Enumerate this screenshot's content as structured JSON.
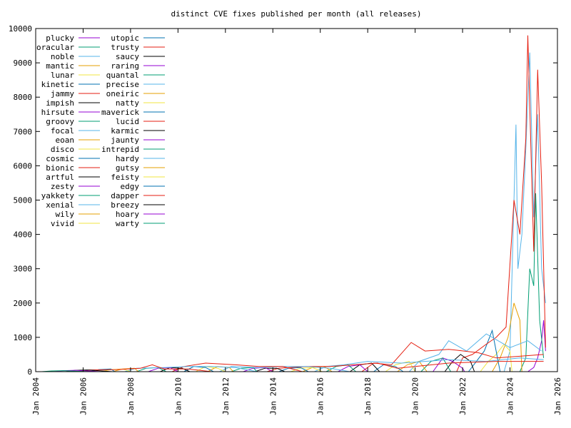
{
  "chart_data": {
    "type": "line",
    "title": "distinct CVE fixes published per month (all releases)",
    "xlabel": "",
    "ylabel": "",
    "xlim": [
      "2004-01",
      "2026-01"
    ],
    "ylim": [
      0,
      10000
    ],
    "grid": false,
    "legend_position": "top-left",
    "y_ticks": [
      "0",
      "1000",
      "2000",
      "3000",
      "4000",
      "5000",
      "6000",
      "7000",
      "8000",
      "9000",
      "10000"
    ],
    "x_ticks": [
      "Jan 2004",
      "Jan 2006",
      "Jan 2008",
      "Jan 2010",
      "Jan 2012",
      "Jan 2014",
      "Jan 2016",
      "Jan 2018",
      "Jan 2020",
      "Jan 2022",
      "Jan 2024",
      "Jan 2026"
    ],
    "series": [
      {
        "name": "plucky",
        "color": "#9400d3",
        "points": [
          [
            "2024-10",
            0
          ],
          [
            "2025-01",
            120
          ],
          [
            "2025-03",
            400
          ],
          [
            "2025-05",
            900
          ],
          [
            "2025-06",
            1500
          ],
          [
            "2025-07",
            600
          ]
        ]
      },
      {
        "name": "oracular",
        "color": "#009e73",
        "points": [
          [
            "2024-06",
            0
          ],
          [
            "2024-09",
            400
          ],
          [
            "2024-11",
            3000
          ],
          [
            "2025-01",
            2500
          ],
          [
            "2025-02",
            5200
          ],
          [
            "2025-04",
            1500
          ],
          [
            "2025-06",
            400
          ]
        ]
      },
      {
        "name": "noble",
        "color": "#56b4e9",
        "points": [
          [
            "2023-10",
            0
          ],
          [
            "2024-01",
            600
          ],
          [
            "2024-04",
            7200
          ],
          [
            "2024-05",
            3000
          ],
          [
            "2024-07",
            4000
          ],
          [
            "2024-09",
            6500
          ],
          [
            "2024-11",
            9300
          ],
          [
            "2025-01",
            4500
          ],
          [
            "2025-03",
            7500
          ],
          [
            "2025-05",
            3000
          ],
          [
            "2025-07",
            2000
          ]
        ]
      },
      {
        "name": "mantic",
        "color": "#e69f00",
        "points": [
          [
            "2023-04",
            0
          ],
          [
            "2023-08",
            400
          ],
          [
            "2023-12",
            1000
          ],
          [
            "2024-03",
            2000
          ],
          [
            "2024-06",
            1500
          ],
          [
            "2024-07",
            0
          ]
        ]
      },
      {
        "name": "lunar",
        "color": "#f0e442",
        "points": [
          [
            "2022-10",
            0
          ],
          [
            "2023-02",
            300
          ],
          [
            "2023-06",
            500
          ],
          [
            "2023-10",
            800
          ],
          [
            "2024-01",
            600
          ],
          [
            "2024-02",
            0
          ]
        ]
      },
      {
        "name": "kinetic",
        "color": "#0072b2",
        "points": [
          [
            "2022-04",
            0
          ],
          [
            "2022-08",
            300
          ],
          [
            "2022-12",
            600
          ],
          [
            "2023-04",
            1200
          ],
          [
            "2023-07",
            300
          ],
          [
            "2023-08",
            0
          ]
        ]
      },
      {
        "name": "jammy",
        "color": "#e51e10",
        "points": [
          [
            "2021-10",
            0
          ],
          [
            "2022-01",
            400
          ],
          [
            "2022-06",
            500
          ],
          [
            "2023-01",
            800
          ],
          [
            "2023-06",
            1000
          ],
          [
            "2023-11",
            1300
          ],
          [
            "2024-03",
            5000
          ],
          [
            "2024-06",
            4000
          ],
          [
            "2024-09",
            6800
          ],
          [
            "2024-10",
            9800
          ],
          [
            "2025-01",
            3500
          ],
          [
            "2025-03",
            8800
          ],
          [
            "2025-05",
            5500
          ],
          [
            "2025-07",
            700
          ]
        ]
      },
      {
        "name": "impish",
        "color": "#000000",
        "points": [
          [
            "2021-04",
            0
          ],
          [
            "2021-08",
            300
          ],
          [
            "2021-12",
            500
          ],
          [
            "2022-05",
            300
          ],
          [
            "2022-07",
            0
          ]
        ]
      },
      {
        "name": "hirsute",
        "color": "#9400d3",
        "points": [
          [
            "2020-10",
            0
          ],
          [
            "2021-03",
            400
          ],
          [
            "2021-08",
            300
          ],
          [
            "2022-01",
            100
          ],
          [
            "2022-02",
            0
          ]
        ]
      },
      {
        "name": "groovy",
        "color": "#009e73",
        "points": [
          [
            "2020-04",
            0
          ],
          [
            "2020-09",
            300
          ],
          [
            "2021-03",
            400
          ],
          [
            "2021-07",
            0
          ]
        ]
      },
      {
        "name": "focal",
        "color": "#56b4e9",
        "points": [
          [
            "2019-10",
            0
          ],
          [
            "2020-03",
            300
          ],
          [
            "2021-01",
            500
          ],
          [
            "2021-06",
            900
          ],
          [
            "2022-03",
            600
          ],
          [
            "2023-01",
            1100
          ],
          [
            "2024-01",
            700
          ],
          [
            "2024-10",
            900
          ],
          [
            "2025-05",
            600
          ]
        ]
      },
      {
        "name": "eoan",
        "color": "#e69f00",
        "points": [
          [
            "2019-04",
            0
          ],
          [
            "2019-09",
            200
          ],
          [
            "2020-03",
            300
          ],
          [
            "2020-07",
            0
          ]
        ]
      },
      {
        "name": "disco",
        "color": "#f0e442",
        "points": [
          [
            "2018-10",
            0
          ],
          [
            "2019-03",
            200
          ],
          [
            "2019-10",
            300
          ],
          [
            "2020-01",
            0
          ]
        ]
      },
      {
        "name": "cosmic",
        "color": "#0072b2",
        "points": [
          [
            "2018-04",
            0
          ],
          [
            "2018-09",
            200
          ],
          [
            "2019-03",
            150
          ],
          [
            "2019-07",
            0
          ]
        ]
      },
      {
        "name": "bionic",
        "color": "#e51e10",
        "points": [
          [
            "2017-10",
            0
          ],
          [
            "2018-04",
            250
          ],
          [
            "2019-01",
            200
          ],
          [
            "2019-11",
            850
          ],
          [
            "2020-06",
            600
          ],
          [
            "2021-06",
            650
          ],
          [
            "2022-09",
            550
          ],
          [
            "2023-06",
            400
          ],
          [
            "2024-06",
            450
          ],
          [
            "2025-06",
            500
          ]
        ]
      },
      {
        "name": "artful",
        "color": "#000000",
        "points": [
          [
            "2017-04",
            0
          ],
          [
            "2017-09",
            200
          ],
          [
            "2018-03",
            250
          ],
          [
            "2018-07",
            0
          ]
        ]
      },
      {
        "name": "zesty",
        "color": "#9400d3",
        "points": [
          [
            "2016-10",
            0
          ],
          [
            "2017-03",
            150
          ],
          [
            "2017-09",
            200
          ],
          [
            "2018-01",
            0
          ]
        ]
      },
      {
        "name": "yakkety",
        "color": "#009e73",
        "points": [
          [
            "2016-04",
            0
          ],
          [
            "2016-09",
            150
          ],
          [
            "2017-03",
            200
          ],
          [
            "2017-07",
            0
          ]
        ]
      },
      {
        "name": "xenial",
        "color": "#56b4e9",
        "points": [
          [
            "2015-10",
            0
          ],
          [
            "2016-04",
            150
          ],
          [
            "2017-01",
            200
          ],
          [
            "2018-01",
            300
          ],
          [
            "2019-06",
            250
          ],
          [
            "2020-06",
            300
          ],
          [
            "2021-06",
            350
          ],
          [
            "2023-01",
            300
          ],
          [
            "2024-06",
            400
          ],
          [
            "2025-06",
            350
          ]
        ]
      },
      {
        "name": "wily",
        "color": "#e69f00",
        "points": [
          [
            "2015-04",
            0
          ],
          [
            "2015-09",
            120
          ],
          [
            "2016-03",
            150
          ],
          [
            "2016-07",
            0
          ]
        ]
      },
      {
        "name": "vivid",
        "color": "#f0e442",
        "points": [
          [
            "2014-10",
            0
          ],
          [
            "2015-03",
            100
          ],
          [
            "2015-09",
            120
          ],
          [
            "2016-02",
            0
          ]
        ]
      },
      {
        "name": "utopic",
        "color": "#0072b2",
        "points": [
          [
            "2014-04",
            0
          ],
          [
            "2014-09",
            100
          ],
          [
            "2015-03",
            120
          ],
          [
            "2015-07",
            0
          ]
        ]
      },
      {
        "name": "trusty",
        "color": "#e51e10",
        "points": [
          [
            "2013-10",
            0
          ],
          [
            "2014-04",
            100
          ],
          [
            "2015-06",
            150
          ],
          [
            "2016-06",
            150
          ],
          [
            "2017-06",
            200
          ],
          [
            "2018-06",
            250
          ],
          [
            "2019-04",
            100
          ],
          [
            "2021-06",
            250
          ],
          [
            "2023-06",
            300
          ],
          [
            "2025-06",
            300
          ]
        ]
      },
      {
        "name": "saucy",
        "color": "#000000",
        "points": [
          [
            "2013-04",
            0
          ],
          [
            "2013-09",
            100
          ],
          [
            "2014-03",
            100
          ],
          [
            "2014-07",
            0
          ]
        ]
      },
      {
        "name": "raring",
        "color": "#9400d3",
        "points": [
          [
            "2012-10",
            0
          ],
          [
            "2013-03",
            100
          ],
          [
            "2013-09",
            120
          ],
          [
            "2014-01",
            0
          ]
        ]
      },
      {
        "name": "quantal",
        "color": "#009e73",
        "points": [
          [
            "2012-04",
            0
          ],
          [
            "2012-09",
            100
          ],
          [
            "2013-03",
            120
          ],
          [
            "2013-05",
            0
          ]
        ]
      },
      {
        "name": "precise",
        "color": "#56b4e9",
        "points": [
          [
            "2011-10",
            0
          ],
          [
            "2012-04",
            150
          ],
          [
            "2013-06",
            120
          ],
          [
            "2014-06",
            150
          ],
          [
            "2015-06",
            150
          ],
          [
            "2016-06",
            100
          ],
          [
            "2017-04",
            0
          ]
        ]
      },
      {
        "name": "oneiric",
        "color": "#e69f00",
        "points": [
          [
            "2011-04",
            0
          ],
          [
            "2011-09",
            150
          ],
          [
            "2012-03",
            120
          ],
          [
            "2012-05",
            0
          ]
        ]
      },
      {
        "name": "natty",
        "color": "#f0e442",
        "points": [
          [
            "2010-10",
            0
          ],
          [
            "2011-03",
            150
          ],
          [
            "2011-09",
            100
          ],
          [
            "2012-01",
            0
          ]
        ]
      },
      {
        "name": "maverick",
        "color": "#0072b2",
        "points": [
          [
            "2010-04",
            0
          ],
          [
            "2010-09",
            150
          ],
          [
            "2011-03",
            120
          ],
          [
            "2011-07",
            0
          ]
        ]
      },
      {
        "name": "lucid",
        "color": "#e51e10",
        "points": [
          [
            "2009-10",
            0
          ],
          [
            "2010-04",
            150
          ],
          [
            "2011-03",
            250
          ],
          [
            "2012-06",
            200
          ],
          [
            "2013-06",
            150
          ],
          [
            "2014-06",
            150
          ],
          [
            "2015-04",
            0
          ]
        ]
      },
      {
        "name": "karmic",
        "color": "#000000",
        "points": [
          [
            "2009-04",
            0
          ],
          [
            "2009-09",
            120
          ],
          [
            "2010-03",
            100
          ],
          [
            "2010-07",
            0
          ]
        ]
      },
      {
        "name": "jaunty",
        "color": "#9400d3",
        "points": [
          [
            "2008-10",
            0
          ],
          [
            "2009-03",
            100
          ],
          [
            "2009-09",
            120
          ],
          [
            "2010-01",
            0
          ]
        ]
      },
      {
        "name": "intrepid",
        "color": "#009e73",
        "points": [
          [
            "2008-04",
            0
          ],
          [
            "2008-09",
            100
          ],
          [
            "2009-03",
            120
          ],
          [
            "2009-07",
            0
          ]
        ]
      },
      {
        "name": "hardy",
        "color": "#56b4e9",
        "points": [
          [
            "2007-10",
            0
          ],
          [
            "2008-04",
            100
          ],
          [
            "2009-06",
            120
          ],
          [
            "2010-06",
            150
          ],
          [
            "2011-06",
            150
          ],
          [
            "2012-06",
            120
          ],
          [
            "2013-05",
            0
          ]
        ]
      },
      {
        "name": "gutsy",
        "color": "#e69f00",
        "points": [
          [
            "2007-04",
            0
          ],
          [
            "2007-09",
            80
          ],
          [
            "2008-03",
            100
          ],
          [
            "2008-05",
            0
          ]
        ]
      },
      {
        "name": "feisty",
        "color": "#f0e442",
        "points": [
          [
            "2006-10",
            0
          ],
          [
            "2007-03",
            60
          ],
          [
            "2007-09",
            80
          ],
          [
            "2008-01",
            0
          ]
        ]
      },
      {
        "name": "edgy",
        "color": "#0072b2",
        "points": [
          [
            "2006-04",
            0
          ],
          [
            "2006-09",
            60
          ],
          [
            "2007-03",
            80
          ],
          [
            "2007-05",
            0
          ]
        ]
      },
      {
        "name": "dapper",
        "color": "#e51e10",
        "points": [
          [
            "2005-10",
            0
          ],
          [
            "2006-04",
            50
          ],
          [
            "2007-06",
            60
          ],
          [
            "2008-06",
            100
          ],
          [
            "2008-12",
            200
          ],
          [
            "2009-06",
            80
          ],
          [
            "2010-06",
            80
          ],
          [
            "2011-06",
            0
          ]
        ]
      },
      {
        "name": "breezy",
        "color": "#000000",
        "points": [
          [
            "2005-04",
            0
          ],
          [
            "2005-09",
            40
          ],
          [
            "2006-03",
            50
          ],
          [
            "2007-04",
            0
          ]
        ]
      },
      {
        "name": "hoary",
        "color": "#9400d3",
        "points": [
          [
            "2004-10",
            0
          ],
          [
            "2005-03",
            30
          ],
          [
            "2005-09",
            40
          ],
          [
            "2006-10",
            0
          ]
        ]
      },
      {
        "name": "warty",
        "color": "#009e73",
        "points": [
          [
            "2004-04",
            0
          ],
          [
            "2004-09",
            20
          ],
          [
            "2005-03",
            30
          ],
          [
            "2006-04",
            0
          ]
        ]
      }
    ]
  }
}
